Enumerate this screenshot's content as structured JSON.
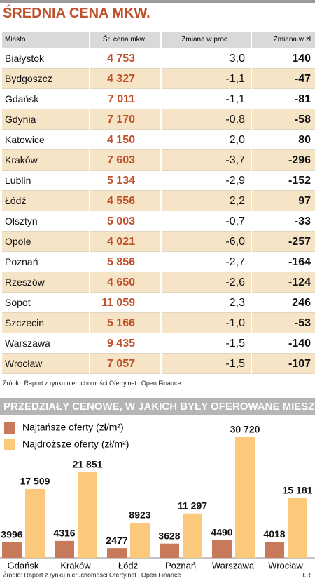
{
  "table": {
    "title": "ŚREDNIA CENA MKW.",
    "columns": [
      "Miasto",
      "Śr. cena mkw.",
      "Zmiana w proc.",
      "Zmiana w zł"
    ],
    "rows": [
      [
        "Białystok",
        "4 753",
        "3,0",
        "140"
      ],
      [
        "Bydgoszcz",
        "4 327",
        "-1,1",
        "-47"
      ],
      [
        "Gdańsk",
        "7 011",
        "-1,1",
        "-81"
      ],
      [
        "Gdynia",
        "7 170",
        "-0,8",
        "-58"
      ],
      [
        "Katowice",
        "4 150",
        "2,0",
        "80"
      ],
      [
        "Kraków",
        "7 603",
        "-3,7",
        "-296"
      ],
      [
        "Lublin",
        "5 134",
        "-2,9",
        "-152"
      ],
      [
        "Łódź",
        "4 556",
        "2,2",
        "97"
      ],
      [
        "Olsztyn",
        "5 003",
        "-0,7",
        "-33"
      ],
      [
        "Opole",
        "4 021",
        "-6,0",
        "-257"
      ],
      [
        "Poznań",
        "5 856",
        "-2,7",
        "-164"
      ],
      [
        "Rzeszów",
        "4 650",
        "-2,6",
        "-124"
      ],
      [
        "Sopot",
        "11 059",
        "2,3",
        "246"
      ],
      [
        "Szczecin",
        "5 166",
        "-1,0",
        "-53"
      ],
      [
        "Warszawa",
        "9 435",
        "-1,5",
        "-140"
      ],
      [
        "Wrocław",
        "7 057",
        "-1,5",
        "-107"
      ]
    ],
    "source": "Źródło: Raport z rynku nieruchomości Oferty.net i Open Finance"
  },
  "chart_data": {
    "type": "bar",
    "title": "PRZEDZIAŁY CENOWE, W JAKICH BYŁY OFEROWANE MIESZKANIA",
    "categories": [
      "Gdańsk",
      "Kraków",
      "Łódź",
      "Poznań",
      "Warszawa",
      "Wrocław"
    ],
    "series": [
      {
        "name": "Najtańsze oferty (zł/m²)",
        "color": "#c8795a",
        "values": [
          3996,
          4316,
          2477,
          3628,
          4490,
          4018
        ],
        "value_labels": [
          "3996",
          "4316",
          "2477",
          "3628",
          "4490",
          "4018"
        ]
      },
      {
        "name": "Najdroższe oferty (zł/m²)",
        "color": "#fcc97c",
        "values": [
          17509,
          21851,
          8923,
          11297,
          30720,
          15181
        ],
        "value_labels": [
          "17 509",
          "21 851",
          "8923",
          "11 297",
          "30 720",
          "15 181"
        ]
      }
    ],
    "source": "Źródło: Raport z rynku nieruchomości Oferty.net i Open Finance",
    "signature": "ŁR"
  }
}
